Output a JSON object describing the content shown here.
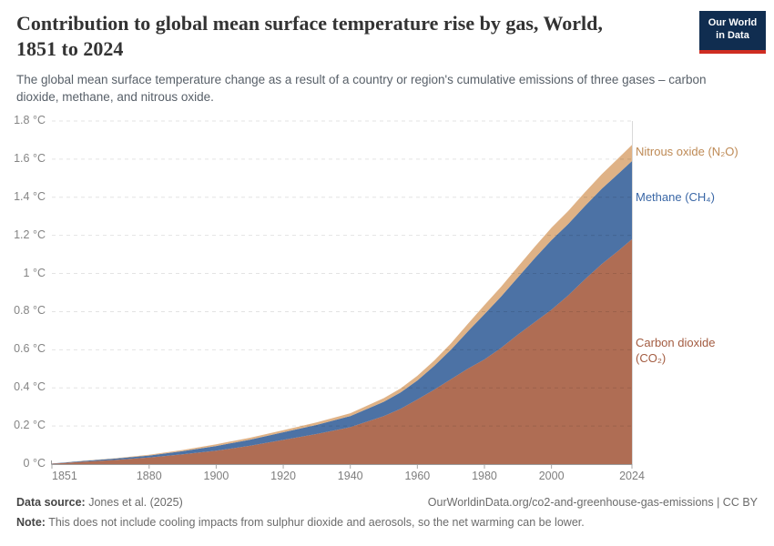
{
  "header": {
    "title_lines": [
      "Contribution to global mean surface temperature rise by gas, World,",
      "1851 to 2024"
    ],
    "subtitle": "The global mean surface temperature change as a result of a country or region's cumulative emissions of three gases – carbon dioxide, methane, and nitrous oxide.",
    "logo": {
      "line1": "Our World",
      "line2": "in Data",
      "bg_color": "#102d50",
      "accent_color": "#cf2d22"
    }
  },
  "chart_data": {
    "type": "area",
    "stacked": true,
    "title": "Contribution to global mean surface temperature rise by gas, World, 1851 to 2024",
    "unit": "°C",
    "ylim": [
      0,
      1.8
    ],
    "grid": "dashed-horizontal",
    "x": [
      1851,
      1860,
      1870,
      1880,
      1890,
      1900,
      1910,
      1920,
      1930,
      1940,
      1950,
      1955,
      1960,
      1965,
      1970,
      1975,
      1980,
      1985,
      1990,
      1995,
      2000,
      2005,
      2010,
      2015,
      2020,
      2024
    ],
    "series": [
      {
        "name": "Carbon dioxide (CO₂)",
        "color": "#AF6D54",
        "values": [
          0.002,
          0.012,
          0.022,
          0.035,
          0.051,
          0.07,
          0.096,
          0.127,
          0.158,
          0.194,
          0.252,
          0.29,
          0.339,
          0.39,
          0.445,
          0.5,
          0.549,
          0.61,
          0.68,
          0.745,
          0.81,
          0.885,
          0.97,
          1.05,
          1.12,
          1.18
        ]
      },
      {
        "name": "Methane (CH₄)",
        "color": "#4C72A5",
        "values": [
          0.001,
          0.004,
          0.007,
          0.01,
          0.017,
          0.025,
          0.032,
          0.04,
          0.048,
          0.058,
          0.075,
          0.086,
          0.1,
          0.125,
          0.155,
          0.195,
          0.238,
          0.27,
          0.3,
          0.335,
          0.365,
          0.375,
          0.385,
          0.395,
          0.405,
          0.41
        ]
      },
      {
        "name": "Nitrous oxide (N₂O)",
        "color": "#DFB286",
        "values": [
          0.0,
          0.001,
          0.002,
          0.004,
          0.006,
          0.009,
          0.01,
          0.011,
          0.013,
          0.015,
          0.019,
          0.021,
          0.024,
          0.028,
          0.033,
          0.04,
          0.047,
          0.051,
          0.056,
          0.06,
          0.065,
          0.068,
          0.072,
          0.076,
          0.081,
          0.085
        ]
      }
    ],
    "y_tick_labels": [
      "0 °C",
      "0.2 °C",
      "0.4 °C",
      "0.6 °C",
      "0.8 °C",
      "1 °C",
      "1.2 °C",
      "1.4 °C",
      "1.6 °C",
      "1.8 °C"
    ],
    "x_ticks": [
      1851,
      1880,
      1900,
      1920,
      1940,
      1960,
      1980,
      2000,
      2024
    ],
    "legend_position": "right"
  },
  "legend": {
    "n2o": {
      "label": "Nitrous oxide (N₂O)",
      "color": "#BE8A55"
    },
    "ch4": {
      "label": "Methane (CH₄)",
      "color": "#3A67A6"
    },
    "co2": {
      "label": "Carbon dioxide (CO₂)",
      "color": "#A35C41"
    }
  },
  "footer": {
    "source_label": "Data source:",
    "source_text": " Jones et al. (2025)",
    "link_text": "OurWorldinData.org/co2-and-greenhouse-gas-emissions | CC BY",
    "note_label": "Note:",
    "note_text": " This does not include cooling impacts from sulphur dioxide and aerosols, so the net warming can be lower."
  }
}
